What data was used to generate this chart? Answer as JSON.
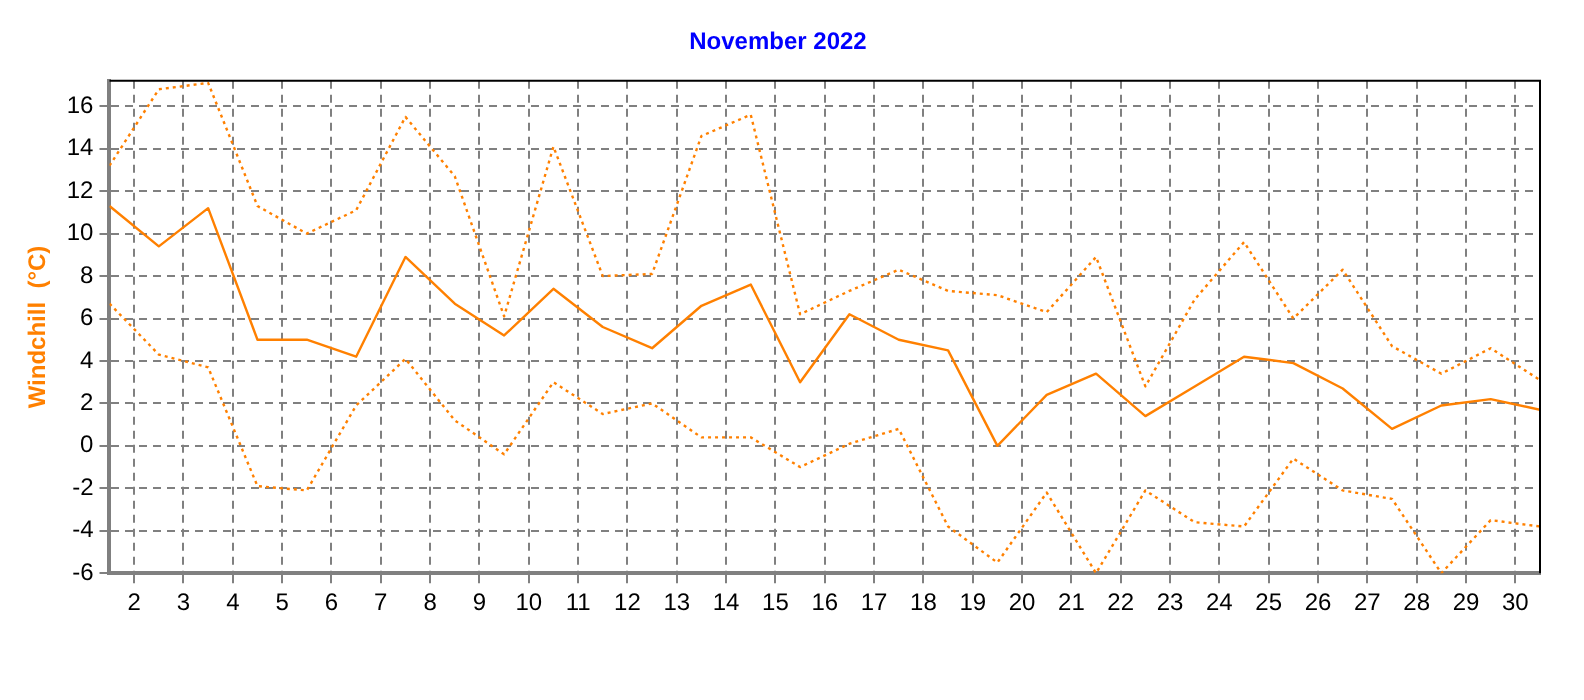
{
  "chart_data": {
    "type": "line",
    "title": "November 2022",
    "ylabel": "Windchill  (°C)",
    "x": [
      1.5,
      2.5,
      3.5,
      4.5,
      5.5,
      6.5,
      7.5,
      8.5,
      9.5,
      10.5,
      11.5,
      12.5,
      13.5,
      14.5,
      15.5,
      16.5,
      17.5,
      18.5,
      19.5,
      20.5,
      21.5,
      22.5,
      23.5,
      24.5,
      25.5,
      26.5,
      27.5,
      28.5,
      29.5,
      30.5
    ],
    "series": [
      {
        "color": "#ff8000",
        "line_style": "solid",
        "values": [
          11.3,
          9.4,
          11.2,
          5.0,
          5.0,
          4.2,
          8.9,
          6.7,
          5.2,
          7.4,
          5.6,
          4.6,
          6.6,
          7.6,
          3.0,
          6.2,
          5.0,
          4.5,
          0.0,
          2.4,
          3.4,
          1.4,
          2.8,
          4.2,
          3.9,
          2.7,
          0.8,
          1.9,
          2.2,
          1.7
        ]
      },
      {
        "color": "#ff8000",
        "line_style": "dotted",
        "values": [
          13.2,
          16.8,
          17.1,
          11.3,
          10.0,
          11.1,
          15.5,
          12.7,
          6.1,
          14.1,
          8.0,
          8.1,
          14.6,
          15.6,
          6.2,
          7.3,
          8.3,
          7.3,
          7.1,
          6.3,
          8.9,
          2.8,
          6.9,
          9.6,
          6.0,
          8.3,
          4.7,
          3.4,
          4.6,
          3.1
        ]
      },
      {
        "color": "#ff8000",
        "line_style": "dotted",
        "values": [
          6.7,
          4.3,
          3.7,
          -1.9,
          -2.1,
          1.9,
          4.1,
          1.2,
          -0.4,
          3.0,
          1.5,
          2.0,
          0.4,
          0.4,
          -1.0,
          0.1,
          0.8,
          -3.8,
          -5.5,
          -2.2,
          -6.0,
          -2.1,
          -3.6,
          -3.8,
          -0.6,
          -2.1,
          -2.5,
          -6.0,
          -3.5,
          -3.8
        ]
      }
    ],
    "xlim": [
      1.5,
      30.5
    ],
    "xticks": [
      2,
      3,
      4,
      5,
      6,
      7,
      8,
      9,
      10,
      11,
      12,
      13,
      14,
      15,
      16,
      17,
      18,
      19,
      20,
      21,
      22,
      23,
      24,
      25,
      26,
      27,
      28,
      29,
      30
    ],
    "ylim": [
      -6,
      17.2
    ],
    "yticks": [
      -6,
      -4,
      -2,
      0,
      2,
      4,
      6,
      8,
      10,
      12,
      14,
      16
    ],
    "grid": true,
    "legend": false,
    "marker": "none"
  }
}
